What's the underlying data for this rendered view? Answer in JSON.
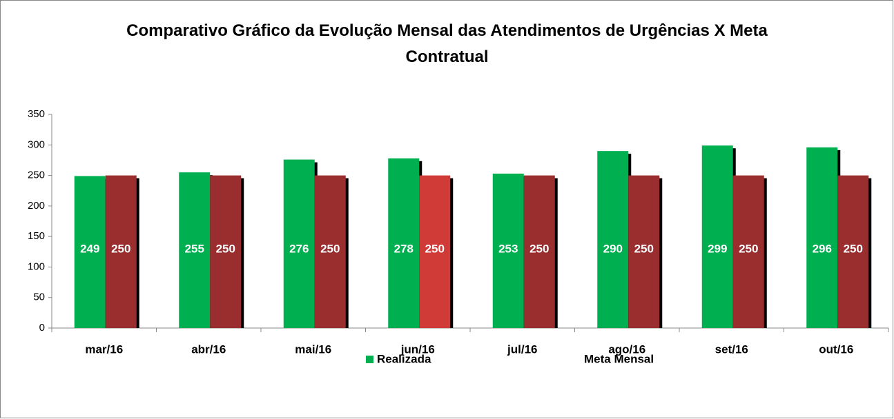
{
  "chart_data": {
    "type": "bar",
    "title": "Comparativo Gráfico da Evolução Mensal das Atendimentos de Urgências X Meta\nContratual",
    "categories": [
      "mar/16",
      "abr/16",
      "mai/16",
      "jun/16",
      "jul/16",
      "ago/16",
      "set/16",
      "out/16"
    ],
    "series": [
      {
        "name": "Realizada",
        "color": "#00b050",
        "values": [
          249,
          255,
          276,
          278,
          253,
          290,
          299,
          296
        ]
      },
      {
        "name": "Meta Mensal",
        "color": "#9a2d2e",
        "colors": [
          "#9a2d2e",
          "#9a2d2e",
          "#9a2d2e",
          "#d03b37",
          "#9a2d2e",
          "#9a2d2e",
          "#9a2d2e",
          "#9a2d2e"
        ],
        "values": [
          250,
          250,
          250,
          250,
          250,
          250,
          250,
          250
        ]
      }
    ],
    "ylim": [
      0,
      350
    ],
    "yticks": [
      0,
      50,
      100,
      150,
      200,
      250,
      300,
      350
    ],
    "grid": false,
    "legend": "bottom"
  }
}
